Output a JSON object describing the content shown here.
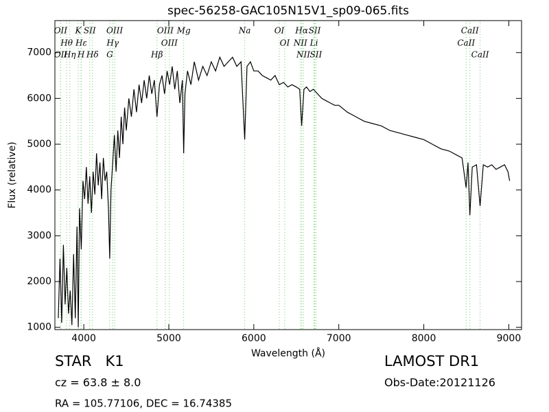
{
  "chart_data": {
    "type": "line",
    "title": "spec-56258-GAC105N15V1_sp09-065.fits",
    "x_label": "Wavelength (Å)",
    "y_label": "Flux (relative)",
    "xlim": [
      3660,
      9150
    ],
    "ylim": [
      950,
      7700
    ],
    "xticks": [
      4000,
      5000,
      6000,
      7000,
      8000,
      9000
    ],
    "yticks": [
      1000,
      2000,
      3000,
      4000,
      5000,
      6000,
      7000
    ],
    "x": [
      3700,
      3720,
      3740,
      3760,
      3780,
      3800,
      3820,
      3840,
      3860,
      3880,
      3900,
      3920,
      3935,
      3950,
      3970,
      3990,
      4010,
      4030,
      4050,
      4070,
      4090,
      4110,
      4130,
      4150,
      4170,
      4190,
      4210,
      4230,
      4250,
      4270,
      4290,
      4305,
      4320,
      4340,
      4360,
      4380,
      4400,
      4420,
      4440,
      4460,
      4480,
      4500,
      4530,
      4560,
      4590,
      4620,
      4650,
      4680,
      4710,
      4740,
      4770,
      4800,
      4830,
      4861,
      4890,
      4920,
      4950,
      4980,
      5010,
      5040,
      5070,
      5100,
      5130,
      5160,
      5175,
      5190,
      5220,
      5260,
      5300,
      5350,
      5400,
      5450,
      5500,
      5550,
      5600,
      5650,
      5700,
      5750,
      5800,
      5850,
      5893,
      5920,
      5960,
      6000,
      6050,
      6100,
      6150,
      6200,
      6250,
      6300,
      6350,
      6400,
      6450,
      6500,
      6540,
      6563,
      6590,
      6620,
      6660,
      6700,
      6750,
      6800,
      6850,
      6900,
      6950,
      7000,
      7100,
      7200,
      7300,
      7400,
      7500,
      7600,
      7700,
      7800,
      7900,
      8000,
      8100,
      8200,
      8300,
      8400,
      8450,
      8498,
      8520,
      8542,
      8570,
      8620,
      8662,
      8700,
      8750,
      8800,
      8850,
      8900,
      8950,
      8990,
      9010
    ],
    "series": [
      {
        "color": "#000000",
        "values": [
          1200,
          2500,
          1100,
          2800,
          1500,
          2300,
          1300,
          1800,
          1050,
          2600,
          1200,
          3200,
          1000,
          3600,
          2700,
          4200,
          3800,
          4500,
          3700,
          4300,
          3500,
          4400,
          3900,
          4800,
          4100,
          4600,
          3800,
          4700,
          4200,
          4400,
          3600,
          2500,
          4000,
          4600,
          5200,
          4400,
          5300,
          4700,
          5600,
          5000,
          5800,
          5300,
          6000,
          5600,
          6200,
          5700,
          6300,
          5900,
          6400,
          6000,
          6500,
          6100,
          6400,
          5600,
          6300,
          6500,
          6100,
          6600,
          6300,
          6700,
          6200,
          6600,
          5900,
          6400,
          4800,
          6100,
          6600,
          6300,
          6800,
          6400,
          6700,
          6500,
          6800,
          6600,
          6900,
          6700,
          6800,
          6900,
          6700,
          6800,
          5100,
          6700,
          6800,
          6600,
          6600,
          6500,
          6450,
          6400,
          6500,
          6300,
          6350,
          6250,
          6300,
          6250,
          6200,
          5400,
          6200,
          6250,
          6150,
          6200,
          6100,
          6000,
          5950,
          5900,
          5850,
          5850,
          5700,
          5600,
          5500,
          5450,
          5400,
          5300,
          5250,
          5200,
          5150,
          5100,
          5000,
          4900,
          4850,
          4750,
          4700,
          4050,
          4600,
          3450,
          4500,
          4550,
          3650,
          4550,
          4500,
          4550,
          4450,
          4500,
          4550,
          4400,
          4200
        ]
      }
    ],
    "line_color": "#66cc66",
    "annotations": [
      {
        "text": "OII",
        "x": 3727
      },
      {
        "text": "Hθ",
        "x": 3798
      },
      {
        "text": "OII",
        "x": 3729
      },
      {
        "text": "Hη",
        "x": 3835
      },
      {
        "text": "K",
        "x": 3934
      },
      {
        "text": "Hε",
        "x": 3970
      },
      {
        "text": "H",
        "x": 3968
      },
      {
        "text": "SII",
        "x": 4070
      },
      {
        "text": "Hδ",
        "x": 4102
      },
      {
        "text": "OIII",
        "x": 4363
      },
      {
        "text": "Hγ",
        "x": 4340
      },
      {
        "text": "G",
        "x": 4305
      },
      {
        "text": "OIII",
        "x": 4959
      },
      {
        "text": "OIII",
        "x": 5007
      },
      {
        "text": "Hβ",
        "x": 4861
      },
      {
        "text": "Mg",
        "x": 5175
      },
      {
        "text": "Na",
        "x": 5893
      },
      {
        "text": "OI",
        "x": 6300
      },
      {
        "text": "OI",
        "x": 6364
      },
      {
        "text": "Hα",
        "x": 6563
      },
      {
        "text": "NII",
        "x": 6548
      },
      {
        "text": "NII",
        "x": 6583
      },
      {
        "text": "SII",
        "x": 6716
      },
      {
        "text": "Li",
        "x": 6708
      },
      {
        "text": "SII",
        "x": 6731
      },
      {
        "text": "CaII",
        "x": 8542
      },
      {
        "text": "CaII",
        "x": 8498
      },
      {
        "text": "CaII",
        "x": 8662
      }
    ]
  },
  "footer": {
    "object": "STAR   K1",
    "survey": "LAMOST DR1",
    "cz": "cz = 63.8 ± 8.0",
    "obs_date": "Obs-Date:20121126",
    "coords": "RA = 105.77106, DEC = 16.74385"
  }
}
